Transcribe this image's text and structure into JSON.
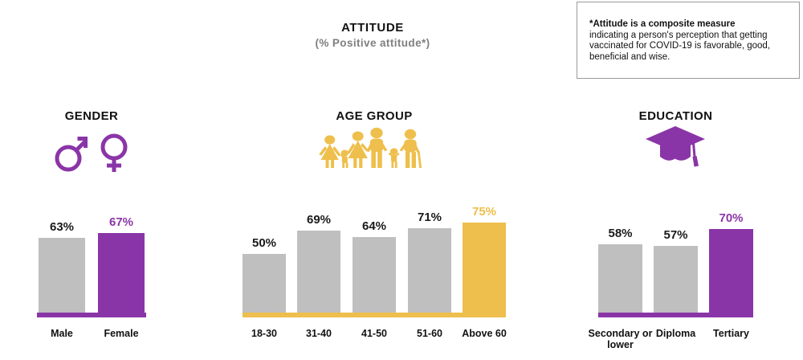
{
  "header": {
    "title": "ATTITUDE",
    "subtitle": "(% Positive attitude*)"
  },
  "note": {
    "bold_text": "*Attitude is a composite measure",
    "body_text": "indicating a person's perception that getting vaccinated for COVID-19 is favorable, good, beneficial and wise."
  },
  "colors": {
    "purple_accent": "#8A35A7",
    "yellow_accent": "#EEBF4C",
    "gray_bar": "#BFBFBF",
    "dark_label": "#1A1A1A"
  },
  "chart_data": [
    {
      "type": "bar",
      "title": "GENDER",
      "icon": "male-female-icon",
      "accent_color": "#8A35A7",
      "bar_color": "#BFBFBF",
      "categories": [
        "Male",
        "Female"
      ],
      "values": [
        63,
        67
      ],
      "highlighted": [
        false,
        true
      ],
      "value_suffix": "%",
      "ylim": [
        0,
        100
      ],
      "grid": false,
      "legend": "none"
    },
    {
      "type": "bar",
      "title": "AGE GROUP",
      "icon": "family-icon",
      "accent_color": "#EEBF4C",
      "bar_color": "#BFBFBF",
      "categories": [
        "18-30",
        "31-40",
        "41-50",
        "51-60",
        "Above 60"
      ],
      "values": [
        50,
        69,
        64,
        71,
        75
      ],
      "highlighted": [
        false,
        false,
        false,
        false,
        true
      ],
      "value_suffix": "%",
      "ylim": [
        0,
        100
      ],
      "grid": false,
      "legend": "none"
    },
    {
      "type": "bar",
      "title": "EDUCATION",
      "icon": "graduation-cap-icon",
      "accent_color": "#8A35A7",
      "bar_color": "#BFBFBF",
      "categories": [
        "Secondary or lower",
        "Diploma",
        "Tertiary"
      ],
      "values": [
        58,
        57,
        70
      ],
      "highlighted": [
        false,
        false,
        true
      ],
      "value_suffix": "%",
      "ylim": [
        0,
        100
      ],
      "grid": false,
      "legend": "none"
    }
  ]
}
